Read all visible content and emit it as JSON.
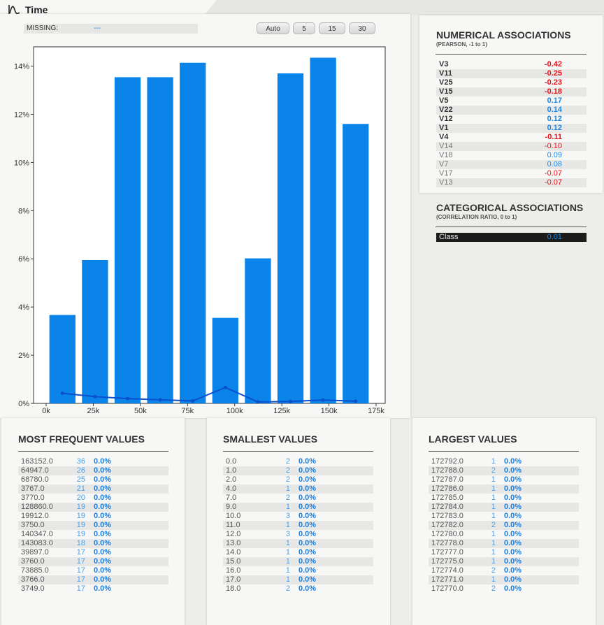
{
  "header": {
    "title": "Time",
    "icon": "chart-line-icon"
  },
  "missing": {
    "label": "MISSING:",
    "value": "---"
  },
  "bin_buttons": [
    "Auto",
    "5",
    "15",
    "30"
  ],
  "colors": {
    "bar": "#0a84e8",
    "line": "#0b4fcf",
    "neg": "#e8101a",
    "pos": "#1a88e8"
  },
  "chart_data": {
    "type": "bar",
    "x_tick_labels": [
      "0k",
      "25k",
      "50k",
      "75k",
      "100k",
      "125k",
      "150k",
      "175k"
    ],
    "x_ticks": [
      0,
      25000,
      50000,
      75000,
      100000,
      125000,
      150000,
      175000
    ],
    "xlim": [
      0,
      175000
    ],
    "y_tick_labels": [
      "0%",
      "2%",
      "4%",
      "6%",
      "8%",
      "10%",
      "12%",
      "14%"
    ],
    "y_ticks": [
      0,
      2,
      4,
      6,
      8,
      10,
      12,
      14
    ],
    "ylim": [
      0,
      14.8
    ],
    "bins": [
      {
        "start": 0,
        "end": 17279
      },
      {
        "start": 17279,
        "end": 34558
      },
      {
        "start": 34558,
        "end": 51837
      },
      {
        "start": 51837,
        "end": 69116
      },
      {
        "start": 69116,
        "end": 86395
      },
      {
        "start": 86395,
        "end": 103674
      },
      {
        "start": 103674,
        "end": 120953
      },
      {
        "start": 120953,
        "end": 138232
      },
      {
        "start": 138232,
        "end": 155511
      },
      {
        "start": 155511,
        "end": 172790
      }
    ],
    "values": [
      3.67,
      5.95,
      13.54,
      13.54,
      14.14,
      3.55,
      6.02,
      13.7,
      14.35,
      11.6
    ],
    "line_values": [
      0.42,
      0.28,
      0.2,
      0.15,
      0.1,
      0.66,
      0.06,
      0.08,
      0.14,
      0.09
    ]
  },
  "numerical": {
    "title": "NUMERICAL ASSOCIATIONS",
    "subtitle": "(PEARSON, -1 to 1)",
    "items": [
      {
        "name": "V3",
        "value": "-0.42",
        "strong": true,
        "neg": true
      },
      {
        "name": "V11",
        "value": "-0.25",
        "strong": true,
        "neg": true
      },
      {
        "name": "V25",
        "value": "-0.23",
        "strong": true,
        "neg": true
      },
      {
        "name": "V15",
        "value": "-0.18",
        "strong": true,
        "neg": true
      },
      {
        "name": "V5",
        "value": "0.17",
        "strong": true,
        "neg": false
      },
      {
        "name": "V22",
        "value": "0.14",
        "strong": true,
        "neg": false
      },
      {
        "name": "V12",
        "value": "0.12",
        "strong": true,
        "neg": false
      },
      {
        "name": "V1",
        "value": "0.12",
        "strong": true,
        "neg": false
      },
      {
        "name": "V4",
        "value": "-0.11",
        "strong": true,
        "neg": true
      },
      {
        "name": "V14",
        "value": "-0.10",
        "strong": false,
        "neg": true
      },
      {
        "name": "V18",
        "value": "0.09",
        "strong": false,
        "neg": false
      },
      {
        "name": "V7",
        "value": "0.08",
        "strong": false,
        "neg": false
      },
      {
        "name": "V17",
        "value": "-0.07",
        "strong": false,
        "neg": true
      },
      {
        "name": "V13",
        "value": "-0.07",
        "strong": false,
        "neg": true
      }
    ]
  },
  "categorical": {
    "title": "CATEGORICAL ASSOCIATIONS",
    "subtitle": "(CORRELATION RATIO, 0 to 1)",
    "items": [
      {
        "name": "Class",
        "value": "0.01"
      }
    ]
  },
  "frequent": {
    "title": "MOST FREQUENT VALUES",
    "rows": [
      [
        "163152.0",
        "36",
        "0.0%"
      ],
      [
        "64947.0",
        "26",
        "0.0%"
      ],
      [
        "68780.0",
        "25",
        "0.0%"
      ],
      [
        "3767.0",
        "21",
        "0.0%"
      ],
      [
        "3770.0",
        "20",
        "0.0%"
      ],
      [
        "128860.0",
        "19",
        "0.0%"
      ],
      [
        "19912.0",
        "19",
        "0.0%"
      ],
      [
        "3750.0",
        "19",
        "0.0%"
      ],
      [
        "140347.0",
        "19",
        "0.0%"
      ],
      [
        "143083.0",
        "18",
        "0.0%"
      ],
      [
        "39897.0",
        "17",
        "0.0%"
      ],
      [
        "3760.0",
        "17",
        "0.0%"
      ],
      [
        "73885.0",
        "17",
        "0.0%"
      ],
      [
        "3766.0",
        "17",
        "0.0%"
      ],
      [
        "3749.0",
        "17",
        "0.0%"
      ]
    ]
  },
  "smallest": {
    "title": "SMALLEST VALUES",
    "rows": [
      [
        "0.0",
        "2",
        "0.0%"
      ],
      [
        "1.0",
        "2",
        "0.0%"
      ],
      [
        "2.0",
        "2",
        "0.0%"
      ],
      [
        "4.0",
        "1",
        "0.0%"
      ],
      [
        "7.0",
        "2",
        "0.0%"
      ],
      [
        "9.0",
        "1",
        "0.0%"
      ],
      [
        "10.0",
        "3",
        "0.0%"
      ],
      [
        "11.0",
        "1",
        "0.0%"
      ],
      [
        "12.0",
        "3",
        "0.0%"
      ],
      [
        "13.0",
        "1",
        "0.0%"
      ],
      [
        "14.0",
        "1",
        "0.0%"
      ],
      [
        "15.0",
        "1",
        "0.0%"
      ],
      [
        "16.0",
        "1",
        "0.0%"
      ],
      [
        "17.0",
        "1",
        "0.0%"
      ],
      [
        "18.0",
        "2",
        "0.0%"
      ]
    ]
  },
  "largest": {
    "title": "LARGEST VALUES",
    "rows": [
      [
        "172792.0",
        "1",
        "0.0%"
      ],
      [
        "172788.0",
        "2",
        "0.0%"
      ],
      [
        "172787.0",
        "1",
        "0.0%"
      ],
      [
        "172786.0",
        "1",
        "0.0%"
      ],
      [
        "172785.0",
        "1",
        "0.0%"
      ],
      [
        "172784.0",
        "1",
        "0.0%"
      ],
      [
        "172783.0",
        "1",
        "0.0%"
      ],
      [
        "172782.0",
        "2",
        "0.0%"
      ],
      [
        "172780.0",
        "1",
        "0.0%"
      ],
      [
        "172778.0",
        "1",
        "0.0%"
      ],
      [
        "172777.0",
        "1",
        "0.0%"
      ],
      [
        "172775.0",
        "1",
        "0.0%"
      ],
      [
        "172774.0",
        "2",
        "0.0%"
      ],
      [
        "172771.0",
        "1",
        "0.0%"
      ],
      [
        "172770.0",
        "2",
        "0.0%"
      ]
    ]
  }
}
